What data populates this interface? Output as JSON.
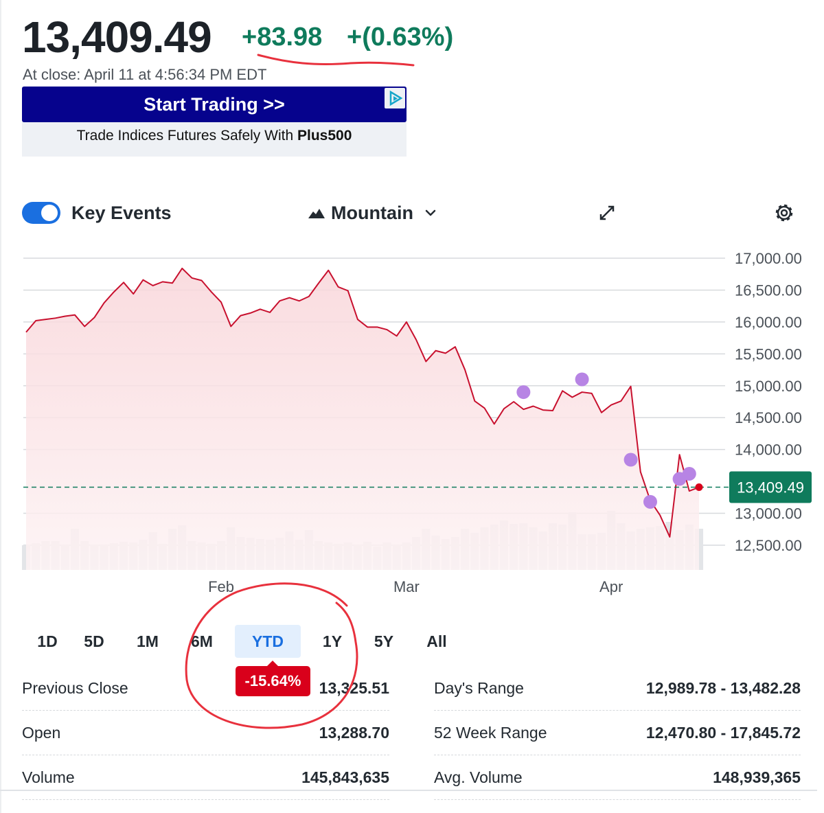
{
  "quote": {
    "price": "13,409.49",
    "change": "+83.98",
    "change_pct": "+(0.63%)",
    "close_time": "At close: April 11 at 4:56:34 PM EDT"
  },
  "ad": {
    "headline": "Start Trading >>",
    "body_prefix": "Trade Indices Futures Safely With ",
    "body_brand": "Plus500",
    "badge_icon": "adchoices-icon"
  },
  "toolbar": {
    "key_events_label": "Key Events",
    "key_events_on": true,
    "chart_type_label": "Mountain",
    "expand_icon": "expand-icon",
    "settings_icon": "gear-icon"
  },
  "chart_data": {
    "type": "area",
    "y_ticks": [
      "17,000.00",
      "16,500.00",
      "16,000.00",
      "15,500.00",
      "15,000.00",
      "14,500.00",
      "14,000.00",
      "13,000.00",
      "12,500.00"
    ],
    "ylim": [
      12500,
      17000
    ],
    "x_ticks": [
      {
        "label": "Feb",
        "index": 20
      },
      {
        "label": "Mar",
        "index": 39
      },
      {
        "label": "Apr",
        "index": 60
      }
    ],
    "current_label": "13,409.49",
    "current_value": 13409.49,
    "line_color": "#c8102e",
    "fill_color": "#f9d6da",
    "baseline_color": "#0f7b5c",
    "event_color": "#b784e4",
    "values": [
      15840,
      16020,
      16040,
      16060,
      16090,
      16110,
      15930,
      16070,
      16300,
      16470,
      16620,
      16440,
      16660,
      16570,
      16630,
      16610,
      16840,
      16690,
      16650,
      16470,
      16310,
      15930,
      16100,
      16140,
      16200,
      16150,
      16330,
      16380,
      16330,
      16400,
      16610,
      16810,
      16550,
      16490,
      16040,
      15920,
      15920,
      15880,
      15780,
      16000,
      15720,
      15380,
      15550,
      15510,
      15610,
      15250,
      14760,
      14650,
      14400,
      14640,
      14750,
      14630,
      14680,
      14620,
      14610,
      14920,
      14820,
      14900,
      14880,
      14580,
      14700,
      14760,
      14990,
      13650,
      13200,
      12970,
      12630,
      13920,
      13350,
      13409.49
    ],
    "volumes": [
      36,
      39,
      42,
      42,
      36,
      60,
      42,
      37,
      36,
      39,
      41,
      40,
      44,
      55,
      38,
      60,
      65,
      42,
      40,
      38,
      42,
      62,
      48,
      47,
      45,
      44,
      47,
      56,
      44,
      58,
      42,
      40,
      38,
      40,
      36,
      41,
      34,
      40,
      36,
      40,
      48,
      60,
      50,
      45,
      48,
      60,
      54,
      62,
      66,
      72,
      67,
      68,
      62,
      56,
      68,
      66,
      84,
      52,
      52,
      54,
      86,
      68,
      56,
      60,
      62,
      64,
      70,
      58,
      66,
      60
    ],
    "events": [
      {
        "index": 51,
        "value": 14900
      },
      {
        "index": 57,
        "value": 15100
      },
      {
        "index": 62,
        "value": 13840
      },
      {
        "index": 64,
        "value": 13180
      },
      {
        "index": 67,
        "value": 13540
      },
      {
        "index": 68,
        "value": 13620
      }
    ]
  },
  "ranges": {
    "tabs": [
      "1D",
      "5D",
      "1M",
      "6M",
      "YTD",
      "1Y",
      "5Y",
      "All"
    ],
    "active": "YTD",
    "active_change": "-15.64%"
  },
  "stats_left": [
    {
      "label": "Previous Close",
      "value": "13,325.51"
    },
    {
      "label": "Open",
      "value": "13,288.70"
    },
    {
      "label": "Volume",
      "value": "145,843,635"
    }
  ],
  "stats_right": [
    {
      "label": "Day's Range",
      "value": "12,989.78 - 13,482.28"
    },
    {
      "label": "52 Week Range",
      "value": "12,470.80 - 17,845.72"
    },
    {
      "label": "Avg. Volume",
      "value": "148,939,365"
    }
  ]
}
